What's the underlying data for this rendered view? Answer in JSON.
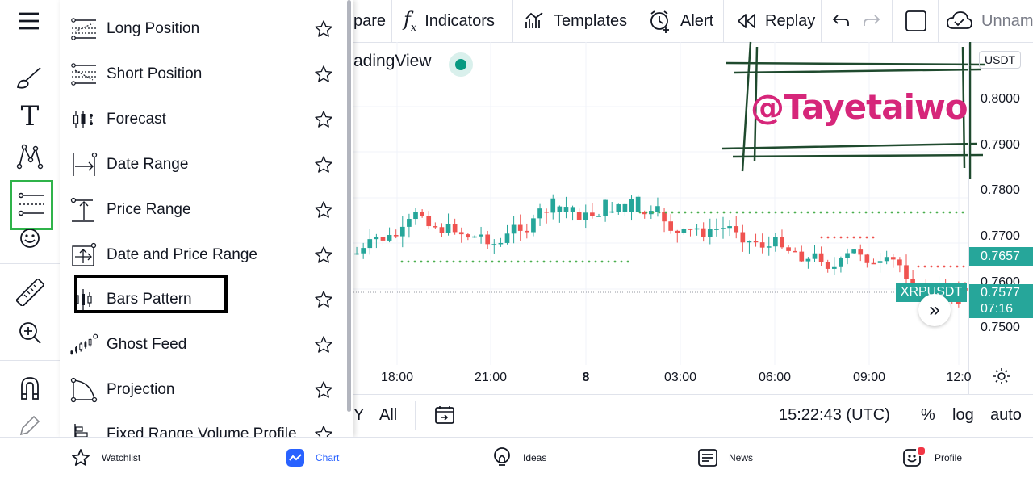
{
  "toolbar": {
    "compare_partial": "pare",
    "indicators": "Indicators",
    "templates": "Templates",
    "alert": "Alert",
    "replay": "Replay",
    "layout_name_partial": "Unnam"
  },
  "chart": {
    "title_partial": "adingView",
    "currency": "USDT",
    "price_axis": [
      "0.8000",
      "0.7900",
      "0.7800",
      "0.7700",
      "0.7600",
      "0.7500"
    ],
    "current_price": "0.7657",
    "symbol_label": "XRPUSDT",
    "symbol_price": "0.7577",
    "countdown": "07:16",
    "time_axis": [
      "18:00",
      "21:00",
      "8",
      "03:00",
      "06:00",
      "09:00",
      "12:0"
    ],
    "colors": {
      "up": "#26a69a",
      "down": "#ef5350",
      "dots_green": "#4caf50",
      "dots_red": "#ef5350"
    }
  },
  "watermark": {
    "text": "@Tayetaiwo",
    "color": "#d6267a"
  },
  "range_bar": {
    "y_partial": "Y",
    "all": "All",
    "clock": "15:22:43 (UTC)",
    "percent": "%",
    "log": "log",
    "auto": "auto"
  },
  "menu": {
    "items": [
      {
        "label": "Long Position",
        "icon": "long-position-icon"
      },
      {
        "label": "Short Position",
        "icon": "short-position-icon"
      },
      {
        "label": "Forecast",
        "icon": "forecast-icon"
      },
      {
        "label": "Date Range",
        "icon": "date-range-icon"
      },
      {
        "label": "Price Range",
        "icon": "price-range-icon"
      },
      {
        "label": "Date and Price Range",
        "icon": "date-price-range-icon"
      },
      {
        "label": "Bars Pattern",
        "icon": "bars-pattern-icon"
      },
      {
        "label": "Ghost Feed",
        "icon": "ghost-feed-icon"
      },
      {
        "label": "Projection",
        "icon": "projection-icon"
      },
      {
        "label": "Fixed Range Volume Profile",
        "icon": "volume-profile-icon"
      }
    ]
  },
  "bottom_nav": {
    "watchlist": "Watchlist",
    "chart": "Chart",
    "ideas": "Ideas",
    "news": "News",
    "profile": "Profile"
  }
}
